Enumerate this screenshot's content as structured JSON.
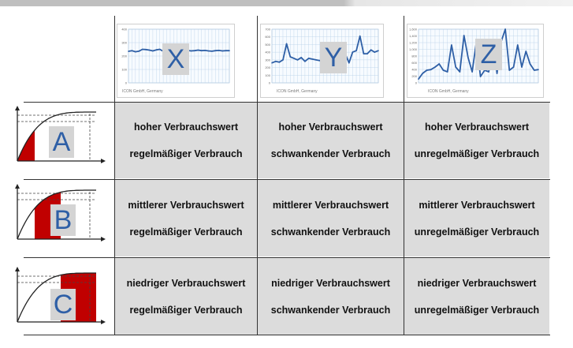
{
  "columns": [
    {
      "key": "X",
      "letter": "X",
      "credit": "ICON GmbH, Germany",
      "y_ticks": [
        "400",
        "300",
        "200",
        "100",
        "0"
      ],
      "series": [
        235,
        240,
        232,
        236,
        250,
        248,
        244,
        238,
        246,
        250,
        236,
        240,
        244,
        238,
        236,
        246,
        240,
        242,
        238,
        240,
        244,
        240,
        242,
        238,
        236,
        240,
        242,
        238,
        240,
        240
      ],
      "ymax": 400
    },
    {
      "key": "Y",
      "letter": "Y",
      "credit": "ICON GmbH, Germany",
      "y_ticks": [
        "700",
        "600",
        "500",
        "400",
        "300",
        "200",
        "100",
        "0"
      ],
      "series": [
        260,
        280,
        270,
        300,
        510,
        340,
        320,
        300,
        330,
        280,
        320,
        310,
        300,
        290,
        300,
        320,
        290,
        300,
        280,
        260,
        380,
        260,
        400,
        420,
        610,
        380,
        380,
        430,
        400,
        420
      ],
      "ymax": 700
    },
    {
      "key": "Z",
      "letter": "Z",
      "credit": "ICON GmbH, Germany",
      "y_ticks": [
        "1,600",
        "1,400",
        "1,200",
        "1,000",
        "800",
        "600",
        "400",
        "200",
        "0"
      ],
      "series": [
        120,
        300,
        400,
        420,
        500,
        600,
        400,
        350,
        1200,
        500,
        350,
        1500,
        800,
        350,
        1300,
        200,
        400,
        350,
        1200,
        300,
        1300,
        1700,
        400,
        500,
        1200,
        500,
        1000,
        600,
        400,
        420
      ],
      "ymax": 1700
    }
  ],
  "rows": [
    {
      "key": "A",
      "letter": "A",
      "fill_fraction": 0.22
    },
    {
      "key": "B",
      "letter": "B",
      "fill_fraction": 0.45
    },
    {
      "key": "C",
      "letter": "C",
      "fill_fraction": 0.55
    }
  ],
  "cells": [
    [
      {
        "line1": "hoher Verbrauchswert",
        "line2": "regelmäßiger Verbrauch"
      },
      {
        "line1": "hoher Verbrauchswert",
        "line2": "schwankender Verbrauch"
      },
      {
        "line1": "hoher Verbrauchswert",
        "line2": "unregelmäßiger Verbrauch"
      }
    ],
    [
      {
        "line1": "mittlerer Verbrauchswert",
        "line2": "regelmäßiger Verbrauch"
      },
      {
        "line1": "mittlerer Verbrauchswert",
        "line2": "schwankender Verbrauch"
      },
      {
        "line1": "mittlerer Verbrauchswert",
        "line2": "unregelmäßiger Verbrauch"
      }
    ],
    [
      {
        "line1": "niedriger Verbrauchswert",
        "line2": "regelmäßiger Verbrauch"
      },
      {
        "line1": "niedriger Verbrauchswert",
        "line2": "schwankender Verbrauch"
      },
      {
        "line1": "niedriger Verbrauchswert",
        "line2": "unregelmäßiger Verbrauch"
      }
    ]
  ],
  "colors": {
    "line": "#2e5fa6",
    "fill_red": "#c00000",
    "cell_bg": "#dcdcdc",
    "grid": "#b8d0e8"
  }
}
